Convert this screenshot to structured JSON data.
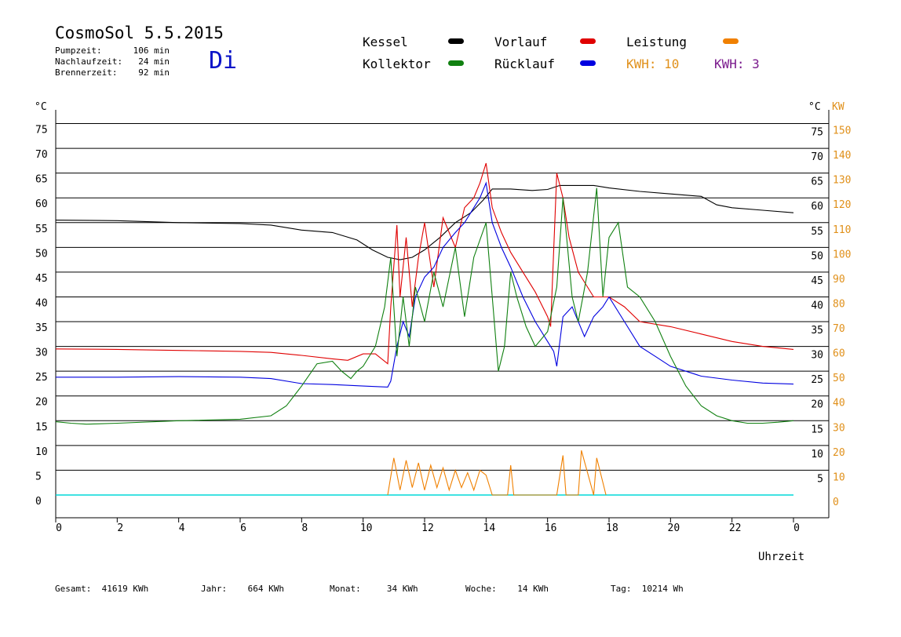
{
  "header": {
    "title": "CosmoSol 5.5.2015",
    "weekday": "Di",
    "info": [
      {
        "label": "Pumpzeit:",
        "value": "106 min"
      },
      {
        "label": "Nachlaufzeit:",
        "value": "24 min"
      },
      {
        "label": "Brennerzeit:",
        "value": "92 min"
      }
    ]
  },
  "legend": {
    "items": [
      {
        "label": "Kessel",
        "color": "#000000"
      },
      {
        "label": "Vorlauf",
        "color": "#e00000"
      },
      {
        "label": "Leistung",
        "color": "#f08000"
      },
      {
        "label": "Kollektor",
        "color": "#108010"
      },
      {
        "label": "Rücklauf",
        "color": "#0000e0"
      }
    ],
    "kwh": [
      {
        "label": "KWH:",
        "value": "10",
        "color": "#e0901a"
      },
      {
        "label": "KWH:",
        "value": "3",
        "color": "#7a1a8c"
      }
    ]
  },
  "footer": [
    {
      "label": "Gesamt:",
      "value": "41619 KWh"
    },
    {
      "label": "Jahr:",
      "value": "664 KWh"
    },
    {
      "label": "Monat:",
      "value": "34 KWh"
    },
    {
      "label": "Woche:",
      "value": "14 KWh"
    },
    {
      "label": "Tag:",
      "value": "10214 Wh"
    }
  ],
  "chart_data": {
    "type": "line",
    "xlabel": "Uhrzeit",
    "x_ticks": [
      "0",
      "2",
      "4",
      "6",
      "8",
      "10",
      "12",
      "14",
      "16",
      "18",
      "20",
      "22",
      "0"
    ],
    "xlim": [
      0,
      24
    ],
    "y_left_label": "°C",
    "y_left_ticks": [
      75,
      70,
      65,
      60,
      55,
      50,
      45,
      40,
      35,
      30,
      25,
      20,
      15,
      10,
      5,
      0
    ],
    "y_right_label": "°C",
    "y_right_ticks": [
      75,
      70,
      65,
      60,
      55,
      50,
      45,
      40,
      35,
      30,
      25,
      20,
      15,
      10,
      5
    ],
    "y2_label": "KW",
    "y2_ticks": [
      150,
      140,
      130,
      120,
      110,
      100,
      90,
      80,
      70,
      60,
      50,
      40,
      30,
      20,
      10,
      0
    ],
    "ylim": [
      0,
      75
    ],
    "grid": true,
    "series": [
      {
        "name": "Kessel",
        "color": "#000000",
        "x": [
          0,
          2,
          4,
          6,
          7,
          8,
          9,
          9.8,
          10.3,
          10.8,
          11.2,
          11.6,
          12,
          12.5,
          13,
          13.5,
          13.9,
          14.2,
          14.8,
          15.5,
          16,
          16.4,
          17,
          17.5,
          18,
          19,
          20,
          21,
          21.5,
          22,
          23,
          24
        ],
        "y": [
          55.5,
          55.4,
          55,
          54.8,
          54.5,
          53.5,
          53,
          51.5,
          49.5,
          48,
          47.5,
          48,
          49.5,
          52,
          55,
          57,
          59.5,
          61.8,
          61.8,
          61.5,
          61.7,
          62.5,
          62.5,
          62.5,
          62,
          61.3,
          60.8,
          60.3,
          58.6,
          58,
          57.5,
          57
        ]
      },
      {
        "name": "Vorlauf",
        "color": "#e00000",
        "x": [
          0,
          2,
          4,
          6,
          7,
          8,
          9,
          9.5,
          10,
          10.4,
          10.8,
          10.9,
          11.1,
          11.2,
          11.4,
          11.6,
          11.8,
          12,
          12.3,
          12.6,
          13,
          13.3,
          13.6,
          13.8,
          14,
          14.2,
          14.5,
          14.8,
          15.2,
          15.6,
          16,
          16.1,
          16.3,
          16.5,
          16.7,
          17,
          17.5,
          18,
          18.5,
          19,
          20,
          21,
          22,
          23,
          24
        ],
        "y": [
          29.5,
          29.4,
          29.2,
          29,
          28.8,
          28.2,
          27.5,
          27.2,
          28.5,
          28.5,
          26.5,
          38,
          54.5,
          40,
          52,
          38,
          48,
          55,
          42,
          56,
          50,
          58,
          60,
          63,
          67,
          58,
          53,
          49,
          45,
          41,
          36,
          34,
          65,
          60,
          52,
          45,
          40,
          40,
          38,
          35,
          34,
          32.5,
          31,
          30,
          29.4
        ]
      },
      {
        "name": "Rücklauf",
        "color": "#0000e0",
        "x": [
          0,
          2,
          4,
          6,
          7,
          8,
          9,
          10,
          10.8,
          10.9,
          11.1,
          11.3,
          11.5,
          11.7,
          12,
          12.3,
          12.6,
          13,
          13.3,
          13.6,
          13.8,
          14,
          14.2,
          14.5,
          14.8,
          15.2,
          15.6,
          16,
          16.2,
          16.3,
          16.5,
          16.8,
          17.2,
          17.5,
          17.8,
          18,
          18.5,
          19,
          19.5,
          20,
          21,
          22,
          23,
          24
        ],
        "y": [
          23.8,
          23.8,
          23.9,
          23.8,
          23.5,
          22.5,
          22.3,
          22,
          21.8,
          23,
          30,
          35,
          32,
          40,
          44,
          46,
          50,
          53,
          55,
          58,
          60,
          63,
          55,
          50,
          46,
          40,
          35,
          31,
          29,
          26,
          36,
          38,
          32,
          36,
          38,
          40,
          35,
          30,
          28,
          26,
          24,
          23.2,
          22.6,
          22.4
        ]
      },
      {
        "name": "Kollektor",
        "color": "#108010",
        "x": [
          0,
          0.5,
          1,
          2,
          4,
          6,
          7,
          7.5,
          8,
          8.5,
          9,
          9.3,
          9.6,
          9.8,
          10,
          10.4,
          10.7,
          10.9,
          11.1,
          11.3,
          11.5,
          11.7,
          12,
          12.3,
          12.6,
          13,
          13.3,
          13.6,
          14,
          14.2,
          14.4,
          14.6,
          14.8,
          15,
          15.3,
          15.6,
          16,
          16.3,
          16.5,
          16.8,
          17,
          17.3,
          17.6,
          17.8,
          18,
          18.3,
          18.6,
          19,
          19.5,
          20,
          20.5,
          21,
          21.5,
          22,
          22.5,
          23,
          23.5,
          24
        ],
        "y": [
          14.8,
          14.5,
          14.3,
          14.5,
          15,
          15.3,
          16,
          18,
          22,
          26.5,
          27,
          25,
          23.5,
          25,
          26,
          30,
          38,
          48,
          28,
          40,
          30,
          42,
          35,
          45,
          38,
          50,
          36,
          48,
          55,
          40,
          25,
          30,
          45,
          40,
          34,
          30,
          33,
          42,
          60,
          40,
          35,
          45,
          62,
          40,
          52,
          55,
          42,
          40,
          35,
          28,
          22,
          18,
          16,
          15,
          14.5,
          14.5,
          14.7,
          15
        ]
      },
      {
        "name": "Leistung",
        "color": "#f08000",
        "axis": "KW",
        "x": [
          10.8,
          11,
          11.2,
          11.4,
          11.6,
          11.8,
          12,
          12.2,
          12.4,
          12.6,
          12.8,
          13,
          13.2,
          13.4,
          13.6,
          13.8,
          14,
          14.2,
          14.7,
          14.8,
          14.9,
          16.3,
          16.5,
          16.6,
          17,
          17.1,
          17.5,
          17.6,
          17.8,
          17.9
        ],
        "y": [
          0,
          15,
          2,
          14,
          3,
          13,
          2,
          12,
          3,
          11,
          2,
          10,
          3,
          9,
          2,
          10,
          8,
          0,
          0,
          12,
          0,
          0,
          16,
          0,
          0,
          18,
          0,
          15,
          5,
          0
        ]
      }
    ]
  }
}
